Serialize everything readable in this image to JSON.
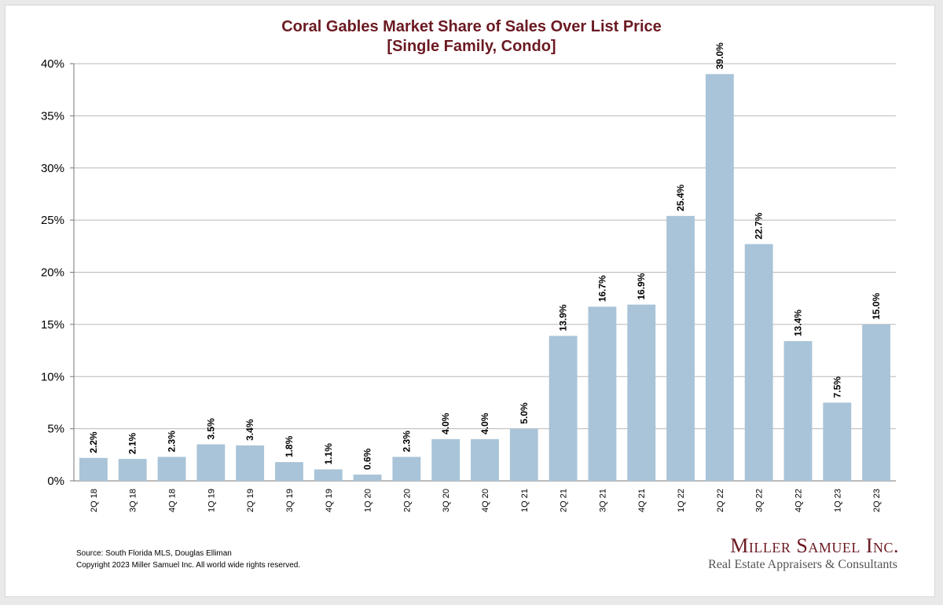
{
  "chart_data": {
    "type": "bar",
    "title_line1": "Coral Gables Market Share of Sales Over List Price",
    "title_line2": "[Single Family, Condo]",
    "categories": [
      "2Q 18",
      "3Q 18",
      "4Q 18",
      "1Q 19",
      "2Q 19",
      "3Q 19",
      "4Q 19",
      "1Q 20",
      "2Q 20",
      "3Q 20",
      "4Q 20",
      "1Q 21",
      "2Q 21",
      "3Q 21",
      "4Q 21",
      "1Q 22",
      "2Q 22",
      "3Q 22",
      "4Q 22",
      "1Q 23",
      "2Q 23"
    ],
    "values": [
      2.2,
      2.1,
      2.3,
      3.5,
      3.4,
      1.8,
      1.1,
      0.6,
      2.3,
      4.0,
      4.0,
      5.0,
      13.9,
      16.7,
      16.9,
      25.4,
      39.0,
      22.7,
      13.4,
      7.5,
      15.0
    ],
    "data_labels": [
      "2.2%",
      "2.1%",
      "2.3%",
      "3.5%",
      "3.4%",
      "1.8%",
      "1.1%",
      "0.6%",
      "2.3%",
      "4.0%",
      "4.0%",
      "5.0%",
      "13.9%",
      "16.7%",
      "16.9%",
      "25.4%",
      "39.0%",
      "22.7%",
      "13.4%",
      "7.5%",
      "15.0%"
    ],
    "ylim": [
      0,
      40
    ],
    "yticks": [
      0,
      5,
      10,
      15,
      20,
      25,
      30,
      35,
      40
    ],
    "ytick_labels": [
      "0%",
      "5%",
      "10%",
      "15%",
      "20%",
      "25%",
      "30%",
      "35%",
      "40%"
    ],
    "grid": true,
    "bar_color": "#a9c4d8",
    "title_color": "#6b1a22"
  },
  "footer": {
    "source": "Source: South Florida MLS, Douglas Elliman",
    "copyright": "Copyright 2023 Miller Samuel Inc.  All world wide rights reserved."
  },
  "logo": {
    "name": "Miller Samuel Inc.",
    "tagline": "Real Estate Appraisers & Consultants"
  }
}
